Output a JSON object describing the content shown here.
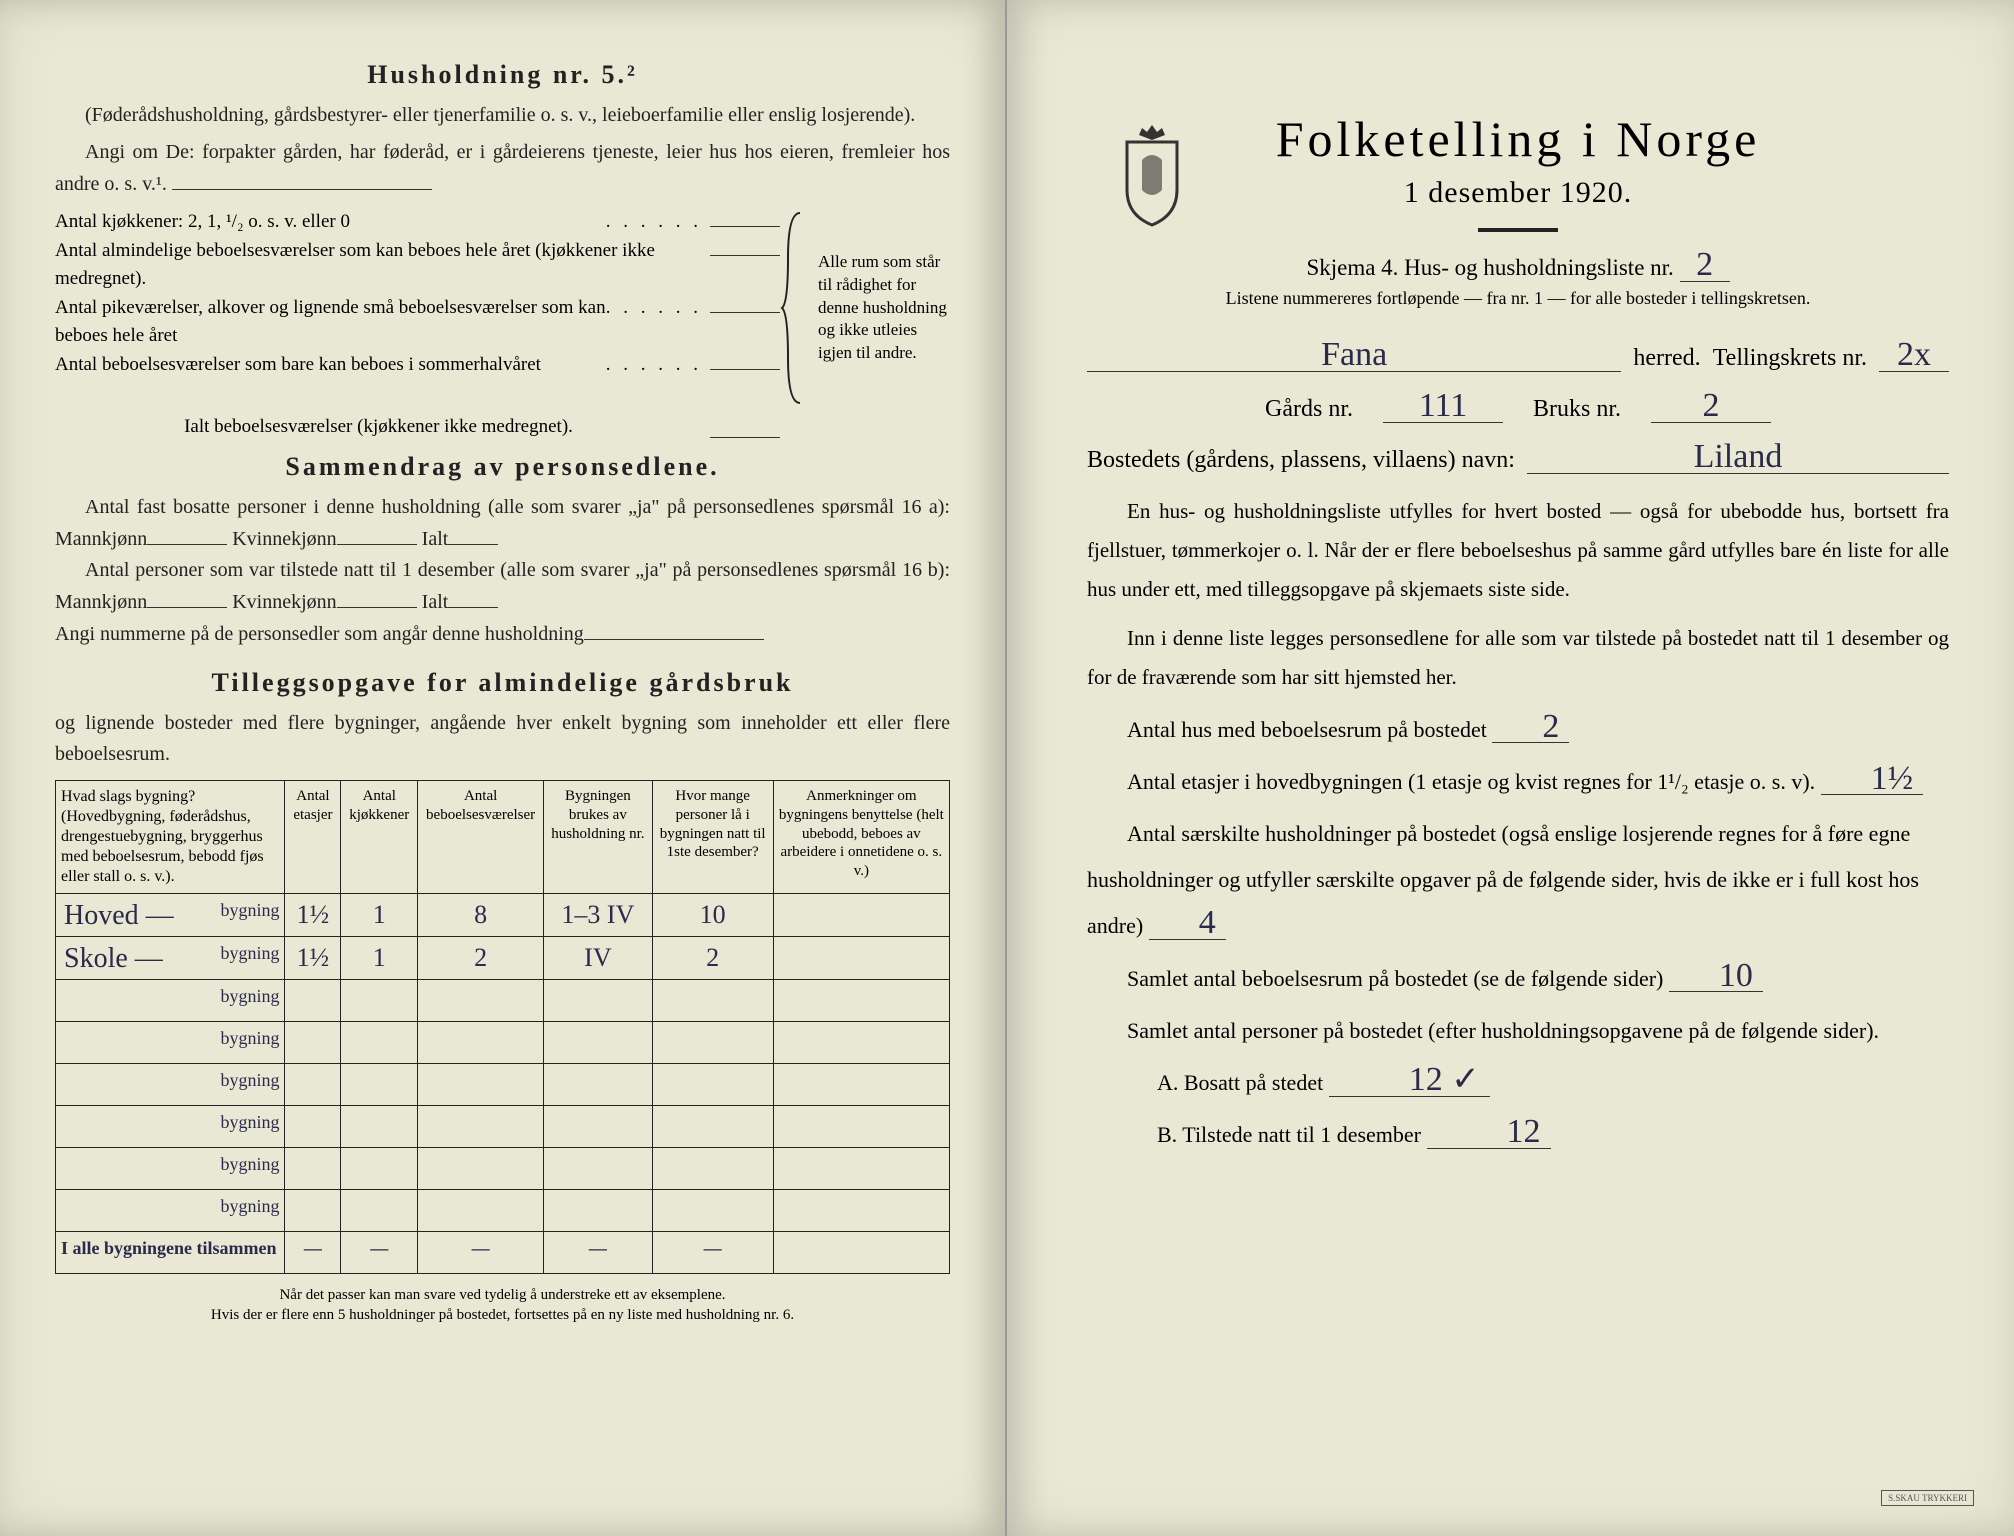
{
  "left": {
    "h5_title": "Husholdning nr. 5.²",
    "h5_sub": "(Føderådshusholdning, gårdsbestyrer- eller tjenerfamilie o. s. v., leieboerfamilie eller enslig losjerende).",
    "h5_line1": "Angi om De: forpakter gården, har føderåd, er i gårdeierens tjeneste, leier hus hos eieren, fremleier hos andre o. s. v.¹.",
    "kjokken_label": "Antal kjøkkener: 2, 1, ¹/₂ o. s. v. eller 0",
    "rooms": [
      "Antal almindelige beboelsesværelser som kan beboes hele året (kjøkkener ikke medregnet).",
      "Antal pikeværelser, alkover og lignende små beboelsesværelser som kan beboes hele året",
      "Antal beboelsesværelser som bare kan beboes i sommerhalvåret"
    ],
    "brace_note": "Alle rum som står til rådighet for denne husholdning og ikke utleies igjen til andre.",
    "total_label": "Ialt beboelsesværelser (kjøkkener ikke medregnet).",
    "sammen_title": "Sammendrag av personsedlene.",
    "sammen_p1a": "Antal fast bosatte personer i denne husholdning (alle som svarer „ja\" på personsedlenes spørsmål 16 a): Mannkjønn",
    "sammen_p1b": "Kvinnekjønn",
    "sammen_p1c": "Ialt",
    "sammen_p2a": "Antal personer som var tilstede natt til 1 desember (alle som svarer „ja\" på personsedlenes spørsmål 16 b): Mannkjønn",
    "sammen_p3": "Angi nummerne på de personsedler som angår denne husholdning",
    "tillegg_title": "Tilleggsopgave for almindelige gårdsbruk",
    "tillegg_sub": "og lignende bosteder med flere bygninger, angående hver enkelt bygning som inneholder ett eller flere beboelsesrum.",
    "table": {
      "headers": [
        "Hvad slags bygning?\n(Hovedbygning, føderådshus, drengestuebygning, bryggerhus med beboelsesrum, bebodd fjøs eller stall o. s. v.).",
        "Antal etasjer",
        "Antal kjøkkener",
        "Antal beboelsesværelser",
        "Bygningen brukes av husholdning nr.",
        "Hvor mange personer lå i bygningen natt til 1ste desember?",
        "Anmerkninger om bygningens benyttelse (helt ubebodd, beboes av arbeidere i onnetidene o. s. v.)"
      ],
      "row_suffix": "bygning",
      "rows": [
        {
          "name": "Hoved —",
          "vals": [
            "1½",
            "1",
            "8",
            "1–3 IV",
            "10",
            ""
          ]
        },
        {
          "name": "Skole —",
          "vals": [
            "1½",
            "1",
            "2",
            "IV",
            "2",
            ""
          ]
        },
        {
          "name": "",
          "vals": [
            "",
            "",
            "",
            "",
            "",
            ""
          ]
        },
        {
          "name": "",
          "vals": [
            "",
            "",
            "",
            "",
            "",
            ""
          ]
        },
        {
          "name": "",
          "vals": [
            "",
            "",
            "",
            "",
            "",
            ""
          ]
        },
        {
          "name": "",
          "vals": [
            "",
            "",
            "",
            "",
            "",
            ""
          ]
        },
        {
          "name": "",
          "vals": [
            "",
            "",
            "",
            "",
            "",
            ""
          ]
        },
        {
          "name": "",
          "vals": [
            "",
            "",
            "",
            "",
            "",
            ""
          ]
        }
      ],
      "total_label": "I alle bygningene tilsammen",
      "total_vals": [
        "—",
        "—",
        "—",
        "—",
        "—",
        ""
      ]
    },
    "footnote": "Når det passer kan man svare ved tydelig å understreke ett av eksemplene.\nHvis der er flere enn 5 husholdninger på bostedet, fortsettes på en ny liste med husholdning nr. 6."
  },
  "right": {
    "title": "Folketelling i Norge",
    "subtitle": "1 desember 1920.",
    "skjema": "Skjema 4.   Hus- og husholdningsliste nr.",
    "skjema_nr": "2",
    "listene": "Listene nummereres fortløpende — fra nr. 1 — for alle bosteder i tellingskretsen.",
    "herred_val": "Fana",
    "herred_lbl": "herred.",
    "krets_lbl": "Tellingskrets nr.",
    "krets_val": "2x",
    "gards_lbl": "Gårds nr.",
    "gards_val": "111",
    "bruks_lbl": "Bruks nr.",
    "bruks_val": "2",
    "bosted_lbl": "Bostedets (gårdens, plassens, villaens) navn:",
    "bosted_val": "Liland",
    "para1": "En hus- og husholdningsliste utfylles for hvert bosted — også for ubebodde hus, bortsett fra fjellstuer, tømmerkojer o. l.  Når der er flere beboelseshus på samme gård utfylles bare én liste for alle hus under ett, med tilleggsopgave på skjemaets siste side.",
    "para2": "Inn i denne liste legges personsedlene for alle som var tilstede på bostedet natt til 1 desember og for de fraværende som har sitt hjemsted her.",
    "q1": "Antal hus med beboelsesrum på bostedet",
    "a1": "2",
    "q2a": "Antal etasjer i hovedbygningen (1 etasje og kvist regnes for 1¹/₂ etasje o. s. v).",
    "a2": "1½",
    "q3": "Antal særskilte husholdninger på bostedet (også enslige losjerende regnes for å føre egne husholdninger og utfyller særskilte opgaver på de følgende sider, hvis de ikke er i full kost hos andre)",
    "a3": "4",
    "q4": "Samlet antal beboelsesrum på bostedet (se de følgende sider)",
    "a4": "10",
    "q5": "Samlet antal personer på bostedet (efter husholdningsopgavene på de følgende sider).",
    "qA": "A.  Bosatt på stedet",
    "aA": "12 ✓",
    "qB": "B.  Tilstede natt til 1 desember",
    "aB": "12",
    "stamp": "S.SKAU TRYKKERI"
  },
  "colors": {
    "paper": "#e8e8d4",
    "ink": "#222222",
    "handwriting": "#2a2a4a"
  }
}
